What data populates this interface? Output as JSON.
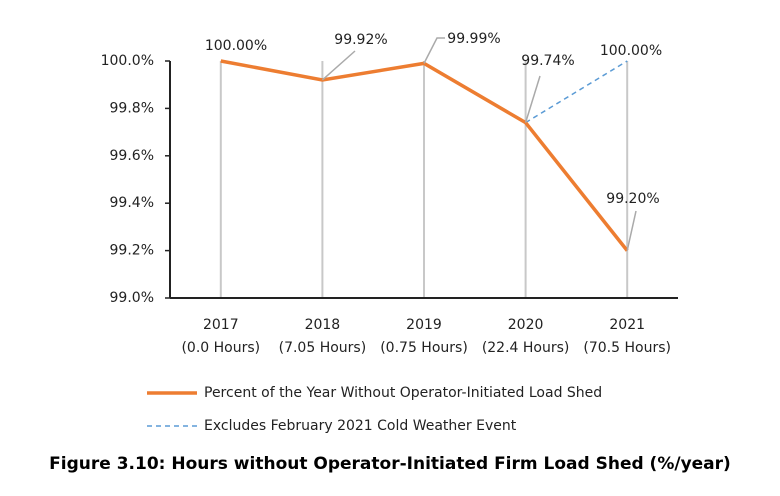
{
  "chart_data": {
    "type": "line",
    "title": "Figure 3.10: Hours without Operator-Initiated Firm Load Shed (%/year)",
    "categories": [
      "2017",
      "2018",
      "2019",
      "2020",
      "2021"
    ],
    "category_sublabels": [
      "(0.0 Hours)",
      "(7.05 Hours)",
      "(0.75 Hours)",
      "(22.4 Hours)",
      "(70.5 Hours)"
    ],
    "series": [
      {
        "name": "Percent of the Year Without Operator-Initiated Load Shed",
        "color": "#ed7d31",
        "dashed": false,
        "values": [
          100.0,
          99.92,
          99.99,
          99.74,
          99.2
        ],
        "value_labels": [
          "100.00%",
          "99.92%",
          "99.99%",
          "99.74%",
          "99.20%"
        ]
      },
      {
        "name": "Excludes February 2021 Cold Weather Event",
        "color": "#5b9bd5",
        "dashed": true,
        "values": [
          null,
          null,
          null,
          99.74,
          100.0
        ],
        "value_labels": [
          null,
          null,
          null,
          null,
          "100.00%"
        ]
      }
    ],
    "ylim": [
      99.0,
      100.0
    ],
    "yticks": [
      {
        "value": 99.0,
        "label": "99.0%"
      },
      {
        "value": 99.2,
        "label": "99.2%"
      },
      {
        "value": 99.4,
        "label": "99.4%"
      },
      {
        "value": 99.6,
        "label": "99.6%"
      },
      {
        "value": 99.8,
        "label": "99.8%"
      },
      {
        "value": 100.0,
        "label": "100.0%"
      }
    ],
    "grid": true
  }
}
